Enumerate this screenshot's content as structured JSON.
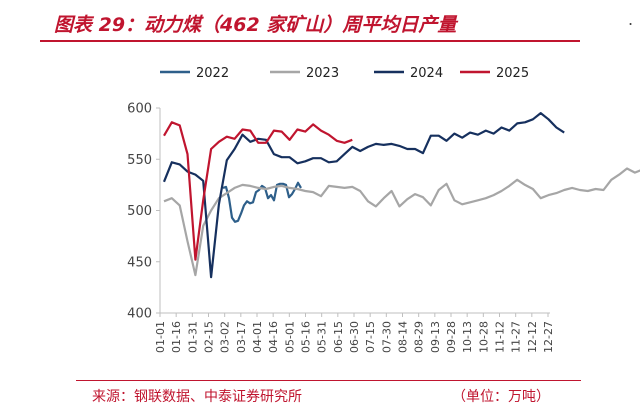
{
  "header": {
    "title": "图表 29：动力煤（462 家矿山）周平均日产量"
  },
  "footer": {
    "source": "来源：钢联数据、中泰证券研究所",
    "unit": "（单位：万吨）"
  },
  "colors": {
    "accent": "#c0152f",
    "s2022": "#2e5f8a",
    "s2023": "#a6a6a6",
    "s2024": "#16305e",
    "s2025": "#c0152f"
  },
  "chart_data": {
    "type": "line",
    "ylim": [
      400,
      600
    ],
    "yticks": [
      400,
      450,
      500,
      550,
      600
    ],
    "x": [
      "01-01",
      "01-16",
      "01-31",
      "02-15",
      "03-02",
      "03-17",
      "04-01",
      "04-16",
      "05-01",
      "05-16",
      "05-31",
      "06-15",
      "06-30",
      "07-15",
      "07-30",
      "08-14",
      "08-29",
      "09-13",
      "09-28",
      "10-13",
      "10-28",
      "11-12",
      "11-27",
      "12-12",
      "12-27"
    ],
    "legend": [
      "2022",
      "2023",
      "2024",
      "2025"
    ],
    "grid": false,
    "legend_position": "top",
    "series": [
      {
        "name": "2022",
        "points": [
          [
            223,
            522
          ],
          [
            226,
            523
          ],
          [
            229,
            512
          ],
          [
            232,
            493
          ],
          [
            235,
            489
          ],
          [
            238,
            490
          ],
          [
            241,
            497
          ],
          [
            244,
            505
          ],
          [
            247,
            509
          ],
          [
            250,
            507
          ],
          [
            253,
            508
          ],
          [
            256,
            518
          ],
          [
            259,
            520
          ],
          [
            262,
            524
          ],
          [
            265,
            522
          ],
          [
            268,
            512
          ],
          [
            271,
            515
          ],
          [
            274,
            510
          ],
          [
            277,
            525
          ],
          [
            280,
            526
          ],
          [
            283,
            526
          ],
          [
            286,
            525
          ],
          [
            289,
            513
          ],
          [
            292,
            516
          ],
          [
            295,
            521
          ],
          [
            298,
            527
          ],
          [
            301,
            522
          ]
        ]
      },
      {
        "name": "2023",
        "points": [
          [
            0,
            509
          ],
          [
            1,
            512
          ],
          [
            2,
            505
          ],
          [
            3,
            470
          ],
          [
            4,
            437
          ],
          [
            5,
            485
          ],
          [
            6,
            500
          ],
          [
            7,
            512
          ],
          [
            8,
            517
          ],
          [
            9,
            522
          ],
          [
            10,
            525
          ],
          [
            11,
            524
          ],
          [
            12,
            522
          ],
          [
            13,
            521
          ],
          [
            14,
            523
          ],
          [
            15,
            524
          ],
          [
            16,
            522
          ],
          [
            17,
            521
          ],
          [
            18,
            519
          ],
          [
            19,
            518
          ],
          [
            20,
            514
          ],
          [
            21,
            524
          ],
          [
            22,
            523
          ],
          [
            23,
            522
          ],
          [
            24,
            523
          ],
          [
            25,
            519
          ],
          [
            26,
            509
          ],
          [
            27,
            504
          ],
          [
            28,
            512
          ],
          [
            29,
            519
          ],
          [
            30,
            504
          ],
          [
            31,
            511
          ],
          [
            32,
            516
          ],
          [
            33,
            513
          ],
          [
            34,
            505
          ],
          [
            35,
            520
          ],
          [
            36,
            526
          ],
          [
            37,
            510
          ],
          [
            38,
            506
          ],
          [
            39,
            508
          ],
          [
            40,
            510
          ],
          [
            41,
            512
          ],
          [
            42,
            515
          ],
          [
            43,
            519
          ],
          [
            44,
            524
          ],
          [
            45,
            530
          ],
          [
            46,
            525
          ],
          [
            47,
            521
          ],
          [
            48,
            512
          ],
          [
            49,
            515
          ],
          [
            50,
            517
          ],
          [
            51,
            520
          ],
          [
            52,
            522
          ],
          [
            53,
            520
          ],
          [
            54,
            519
          ],
          [
            55,
            521
          ],
          [
            56,
            520
          ],
          [
            57,
            530
          ],
          [
            58,
            535
          ],
          [
            59,
            541
          ],
          [
            60,
            537
          ],
          [
            61,
            540
          ],
          [
            62,
            546
          ],
          [
            63,
            552
          ],
          [
            64,
            553
          ],
          [
            65,
            554
          ],
          [
            66,
            549
          ],
          [
            67,
            537
          ],
          [
            68,
            551
          ],
          [
            69,
            533
          ],
          [
            70,
            525
          ]
        ]
      },
      {
        "name": "2024",
        "points": [
          [
            0,
            528
          ],
          [
            1,
            547
          ],
          [
            2,
            545
          ],
          [
            3,
            538
          ],
          [
            4,
            535
          ],
          [
            5,
            529
          ],
          [
            6,
            435
          ],
          [
            7,
            506
          ],
          [
            8,
            549
          ],
          [
            9,
            560
          ],
          [
            10,
            574
          ],
          [
            11,
            567
          ],
          [
            12,
            570
          ],
          [
            13,
            569
          ],
          [
            14,
            555
          ],
          [
            15,
            552
          ],
          [
            16,
            552
          ],
          [
            17,
            546
          ],
          [
            18,
            548
          ],
          [
            19,
            551
          ],
          [
            20,
            551
          ],
          [
            21,
            547
          ],
          [
            22,
            548
          ],
          [
            23,
            555
          ],
          [
            24,
            562
          ],
          [
            25,
            558
          ],
          [
            26,
            562
          ],
          [
            27,
            565
          ],
          [
            28,
            564
          ],
          [
            29,
            565
          ],
          [
            30,
            563
          ],
          [
            31,
            560
          ],
          [
            32,
            560
          ],
          [
            33,
            556
          ],
          [
            34,
            573
          ],
          [
            35,
            573
          ],
          [
            36,
            568
          ],
          [
            37,
            575
          ],
          [
            38,
            571
          ],
          [
            39,
            576
          ],
          [
            40,
            574
          ],
          [
            41,
            578
          ],
          [
            42,
            575
          ],
          [
            43,
            581
          ],
          [
            44,
            578
          ],
          [
            45,
            585
          ],
          [
            46,
            586
          ],
          [
            47,
            589
          ],
          [
            48,
            595
          ],
          [
            49,
            589
          ],
          [
            50,
            581
          ],
          [
            51,
            576
          ]
        ]
      },
      {
        "name": "2025",
        "points": [
          [
            0,
            573
          ],
          [
            1,
            586
          ],
          [
            2,
            583
          ],
          [
            3,
            555
          ],
          [
            4,
            452
          ],
          [
            5,
            510
          ],
          [
            6,
            560
          ],
          [
            7,
            567
          ],
          [
            8,
            572
          ],
          [
            9,
            570
          ],
          [
            10,
            579
          ],
          [
            11,
            578
          ],
          [
            12,
            566
          ],
          [
            13,
            566
          ],
          [
            14,
            578
          ],
          [
            15,
            577
          ],
          [
            16,
            569
          ],
          [
            17,
            579
          ],
          [
            18,
            577
          ],
          [
            19,
            584
          ],
          [
            20,
            578
          ],
          [
            21,
            574
          ],
          [
            22,
            568
          ],
          [
            23,
            566
          ],
          [
            24,
            569
          ]
        ]
      }
    ]
  }
}
